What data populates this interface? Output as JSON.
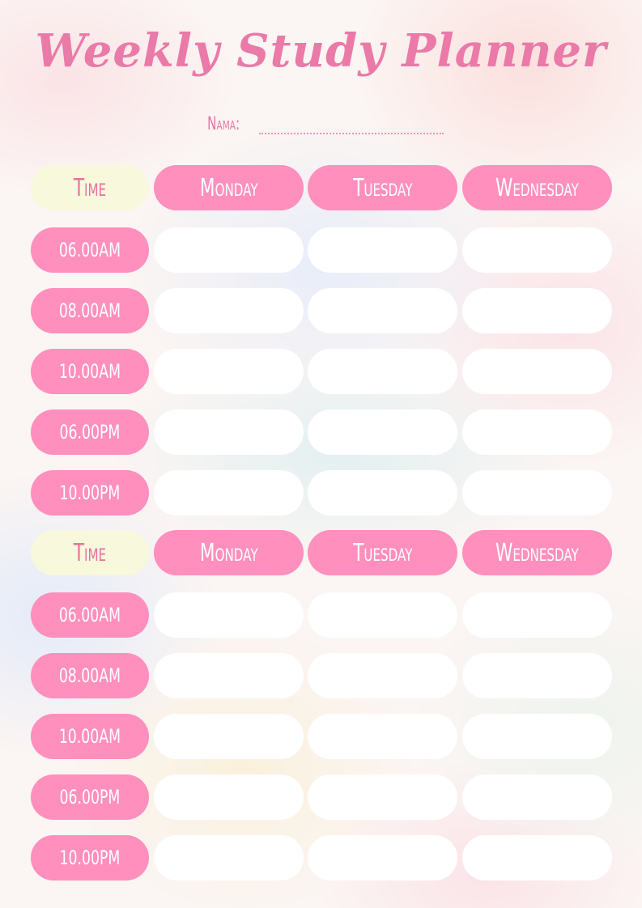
{
  "title": "Weekly Study Planner",
  "name_label": "Nama:",
  "tables": [
    {
      "time_header": "Time",
      "days": [
        "Monday",
        "Tuesday",
        "Wednesday"
      ],
      "slots": [
        "06.00AM",
        "08.00AM",
        "10.00AM",
        "06.00PM",
        "10.00PM"
      ]
    },
    {
      "time_header": "Time",
      "days": [
        "Monday",
        "Tuesday",
        "Wednesday"
      ],
      "slots": [
        "06.00AM",
        "08.00AM",
        "10.00AM",
        "06.00PM",
        "10.00PM"
      ]
    }
  ],
  "colors": {
    "pill": "#ff8fbd",
    "time_header": "#f8f8dc",
    "accent_text": "#e86fa0",
    "cell": "#ffffff"
  }
}
